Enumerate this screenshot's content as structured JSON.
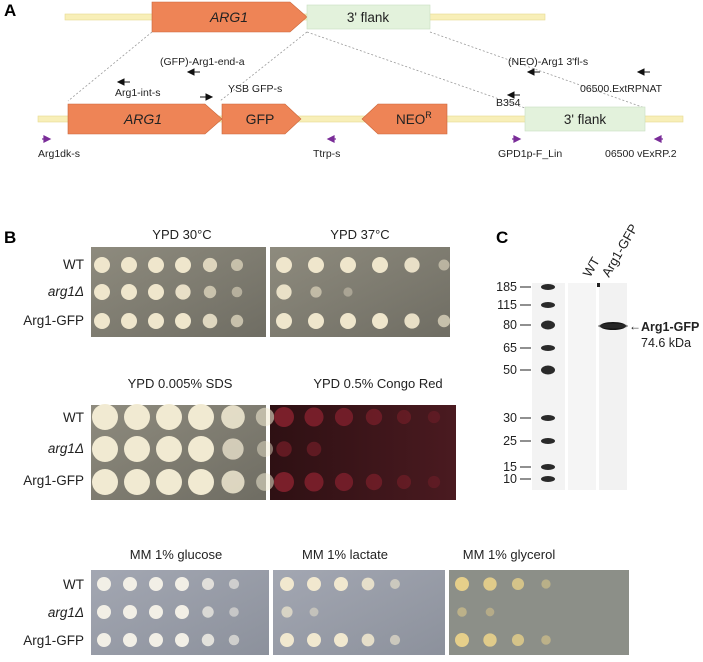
{
  "panels": {
    "a": "A",
    "b": "B",
    "c": "C"
  },
  "construct": {
    "top_gene": "ARG1",
    "top_flank": "3' flank",
    "bottom_gene": "ARG1",
    "gfp": "GFP",
    "neo": "NEO",
    "neo_sup": "R",
    "bottom_flank": "3' flank",
    "primers": {
      "gfp_arg1_end_a": "(GFP)-Arg1-end-a",
      "arg1_int_s": "Arg1-int-s",
      "ysb_gfp_s": "YSB GFP-s",
      "neo_arg1_3fl_s": "(NEO)-Arg1 3'fl-s",
      "extrpnat": "06500.ExtRPNAT",
      "b354": "B354",
      "arg1dk_s": "Arg1dk-s",
      "ttrp_s": "Ttrp-s",
      "gpd1p_f_lin": "GPD1p-F_Lin",
      "vexrp2": "06500 vExRP.2"
    }
  },
  "spot_assay": {
    "strains": [
      "WT",
      "arg1Δ",
      "Arg1-GFP"
    ],
    "conditions": {
      "ypd30": "YPD 30°C",
      "ypd37": "YPD 37°C",
      "sds": "YPD 0.005% SDS",
      "congo": "YPD 0.5% Congo Red",
      "glucose": "MM 1% glucose",
      "lactate": "MM 1% lactate",
      "glycerol": "MM 1% glycerol"
    }
  },
  "western": {
    "lanes": [
      "WT",
      "Arg1-GFP"
    ],
    "markers": [
      "185",
      "115",
      "80",
      "65",
      "50",
      "30",
      "25",
      "15",
      "10"
    ],
    "band_label": "Arg1-GFP",
    "band_arrow": "←",
    "band_size": "74.6 kDa"
  },
  "colors": {
    "gene_orange": "#ee8456",
    "flank_green": "#e3f2dc",
    "backbone_yellow": "#f8efb8",
    "primer_purple": "#7a2d98",
    "congo_plate": "#3a1519"
  }
}
